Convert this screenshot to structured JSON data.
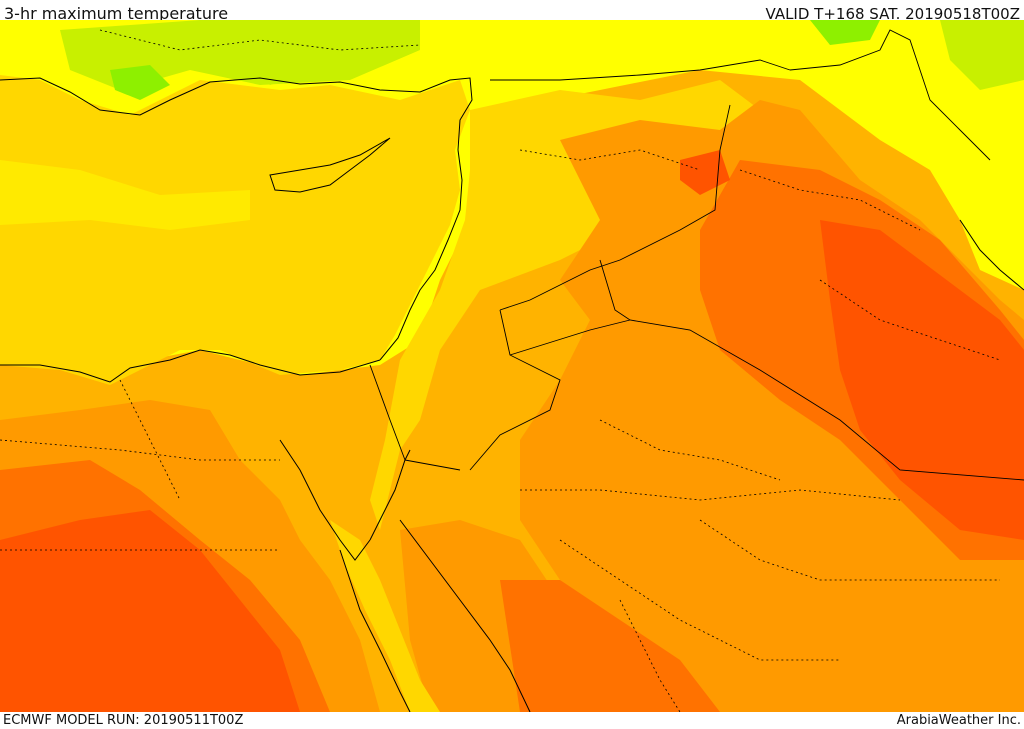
{
  "header": {
    "title": "3-hr maximum temperature",
    "valid": "VALID T+168 SAT. 20190518T00Z"
  },
  "footer": {
    "model_run": "ECMWF MODEL RUN: 20190511T00Z",
    "credit": "ArabiaWeather Inc."
  },
  "map": {
    "colors": {
      "green": "#8ef000",
      "light_green": "#c8f000",
      "yellow": "#ffff00",
      "gold": "#ffd700",
      "orange_light": "#ffb300",
      "orange": "#ff9a00",
      "orange_dark": "#ff7200",
      "red_orange": "#ff5400",
      "sea": "#ffd700"
    }
  }
}
